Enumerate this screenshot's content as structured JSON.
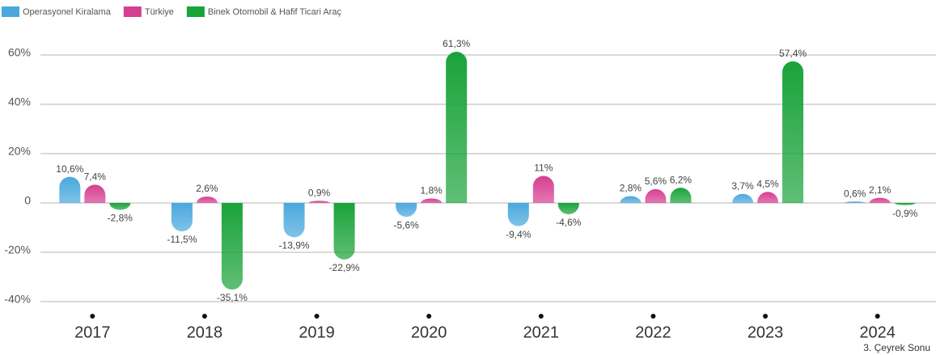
{
  "chart_data": {
    "type": "bar",
    "categories": [
      "2017",
      "2018",
      "2019",
      "2020",
      "2021",
      "2022",
      "2023",
      "2024"
    ],
    "annotation": "3. Çeyrek Sonu",
    "series": [
      {
        "name": "Operasyonel Kiralama",
        "color": "#4aa8de",
        "values": [
          10.6,
          -11.5,
          -13.9,
          -5.6,
          -9.4,
          2.8,
          3.7,
          0.6
        ],
        "value_labels": [
          "10,6%",
          "-11,5%",
          "-13,9%",
          "-5,6%",
          "-9,4%",
          "2,8%",
          "3,7%",
          "0,6%"
        ]
      },
      {
        "name": "Türkiye",
        "color": "#d63f91",
        "values": [
          7.4,
          2.6,
          0.9,
          1.8,
          11,
          5.6,
          4.5,
          2.1
        ],
        "value_labels": [
          "7,4%",
          "2,6%",
          "0,9%",
          "1,8%",
          "11%",
          "5,6%",
          "4,5%",
          "2,1%"
        ]
      },
      {
        "name": "Binek Otomobil & Hafif Ticari Araç",
        "color": "#1aa33a",
        "values": [
          -2.8,
          -35.1,
          -22.9,
          61.3,
          -4.6,
          6.2,
          57.4,
          -0.9
        ],
        "value_labels": [
          "-2,8%",
          "-35,1%",
          "-22,9%",
          "61,3%",
          "-4,6%",
          "6,2%",
          "57,4%",
          "-0,9%"
        ]
      }
    ],
    "ylim": [
      -40,
      70
    ],
    "yticks": [
      {
        "value": -40,
        "label": "-40%"
      },
      {
        "value": -20,
        "label": "-20%"
      },
      0,
      {
        "value": 20,
        "label": "20%"
      },
      {
        "value": 40,
        "label": "40%"
      },
      {
        "value": 60,
        "label": "60%"
      }
    ],
    "grid": true,
    "legend": "top-left"
  }
}
